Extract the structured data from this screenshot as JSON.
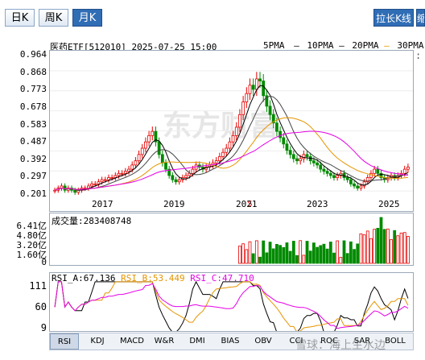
{
  "toolbar": {
    "periods": [
      "日K",
      "周K",
      "月K"
    ],
    "active_period": "月K",
    "stretch_button": "拉长K线",
    "extra_button": "缩"
  },
  "chart_header": {
    "title": "医药ETF[512010] 2025-07-25 15:00",
    "legend": [
      {
        "label": "5PMA",
        "color": "#000000"
      },
      {
        "label": "10PMA",
        "color": "#000000"
      },
      {
        "label": "20PMA",
        "color": "#e69500"
      },
      {
        "label": "30PMA",
        "color": "#e600e6"
      }
    ]
  },
  "price_panel": {
    "y_labels": [
      "0.964",
      "0.868",
      "0.773",
      "0.678",
      "0.583",
      "0.487",
      "0.392",
      "0.297",
      "0.201"
    ],
    "x_labels": [
      "2017",
      "2019",
      "2021",
      "2023",
      "2025"
    ],
    "marker": "S",
    "watermark": "东方财富"
  },
  "volume_panel": {
    "label": "成交量:283408748",
    "y_labels": [
      "6.41亿",
      "4.80亿",
      "3.20亿",
      "1.60亿",
      "0"
    ]
  },
  "rsi_panel": {
    "rsi_a": "RSI_A:67.136",
    "rsi_b": "RSI_B:53.449",
    "rsi_c": "RSI_C:47.710",
    "colors": {
      "a": "#000000",
      "b": "#e69500",
      "c": "#e600e6"
    },
    "y_labels": [
      "111",
      "60",
      "9"
    ]
  },
  "indicator_tabs": [
    "RSI",
    "KDJ",
    "MACD",
    "W&R",
    "DMI",
    "BIAS",
    "OBV",
    "CCI",
    "ROC",
    "SAR",
    "BOLL"
  ],
  "active_indicator": "RSI",
  "bottom_watermark": "雪球：海上生水边",
  "chart_data": {
    "type": "candlestick",
    "title": "医药ETF[512010] 2025-07-25 15:00",
    "x_tick_labels": [
      "2017",
      "2019",
      "2021",
      "2023",
      "2025"
    ],
    "ylim": [
      0.201,
      0.964
    ],
    "monthly_close": [
      0.3,
      0.31,
      0.32,
      0.3,
      0.31,
      0.3,
      0.29,
      0.3,
      0.31,
      0.31,
      0.32,
      0.33,
      0.33,
      0.34,
      0.35,
      0.35,
      0.36,
      0.36,
      0.37,
      0.38,
      0.38,
      0.39,
      0.4,
      0.42,
      0.44,
      0.47,
      0.5,
      0.53,
      0.56,
      0.58,
      0.53,
      0.47,
      0.43,
      0.4,
      0.37,
      0.35,
      0.34,
      0.35,
      0.36,
      0.37,
      0.38,
      0.4,
      0.42,
      0.41,
      0.4,
      0.41,
      0.42,
      0.43,
      0.44,
      0.46,
      0.48,
      0.5,
      0.53,
      0.56,
      0.6,
      0.66,
      0.72,
      0.76,
      0.8,
      0.78,
      0.83,
      0.82,
      0.75,
      0.7,
      0.66,
      0.62,
      0.58,
      0.55,
      0.52,
      0.49,
      0.47,
      0.45,
      0.44,
      0.45,
      0.47,
      0.46,
      0.44,
      0.43,
      0.42,
      0.4,
      0.39,
      0.38,
      0.37,
      0.36,
      0.37,
      0.38,
      0.36,
      0.35,
      0.33,
      0.32,
      0.31,
      0.32,
      0.34,
      0.36,
      0.38,
      0.4,
      0.38,
      0.36,
      0.35,
      0.36,
      0.37,
      0.36,
      0.37,
      0.38,
      0.4,
      0.41
    ],
    "volume_ylim": [
      0,
      641000000
    ],
    "volume_last": 283408748,
    "rsi": {
      "rsi_a": 67.136,
      "rsi_b": 53.449,
      "rsi_c": 47.71,
      "ylim": [
        9,
        111
      ]
    }
  }
}
